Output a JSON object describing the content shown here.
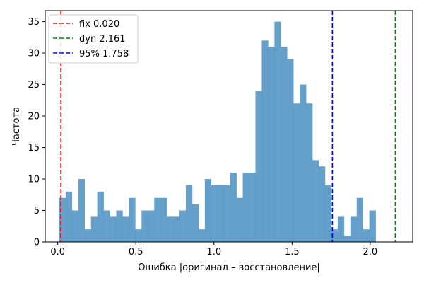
{
  "chart_data": {
    "type": "bar",
    "title": "",
    "xlabel": "Ошибка |оригинал – восстановление|",
    "ylabel": "Частота",
    "xlim": [
      -0.08,
      2.272
    ],
    "ylim": [
      0,
      36.75
    ],
    "x_ticks": [
      0.0,
      0.5,
      1.0,
      1.5,
      2.0
    ],
    "x_tick_labels": [
      "0.0",
      "0.5",
      "1.0",
      "1.5",
      "2.0"
    ],
    "y_ticks": [
      0,
      5,
      10,
      15,
      20,
      25,
      30,
      35
    ],
    "y_tick_labels": [
      "0",
      "5",
      "10",
      "15",
      "20",
      "25",
      "30",
      "35"
    ],
    "grid": false,
    "legend_position": "top-left",
    "bar_color": "#4a8fc2",
    "histogram": {
      "bin_start": 0.01,
      "bin_width": 0.0405,
      "counts": [
        7,
        8,
        5,
        10,
        2,
        4,
        8,
        5,
        4,
        5,
        4,
        7,
        2,
        5,
        5,
        7,
        7,
        4,
        4,
        5,
        9,
        6,
        2,
        10,
        9,
        9,
        9,
        11,
        7,
        11,
        11,
        24,
        32,
        31,
        35,
        31,
        29,
        22,
        25,
        22,
        13,
        12,
        9,
        2,
        4,
        1,
        4,
        7,
        2,
        5
      ]
    },
    "lines": [
      {
        "name": "fix 0.020",
        "x": 0.02,
        "color": "#ff0000"
      },
      {
        "name": "dyn 2.161",
        "x": 2.161,
        "color": "#008000"
      },
      {
        "name": "95% 1.758",
        "x": 1.758,
        "color": "#0000ff"
      }
    ]
  }
}
